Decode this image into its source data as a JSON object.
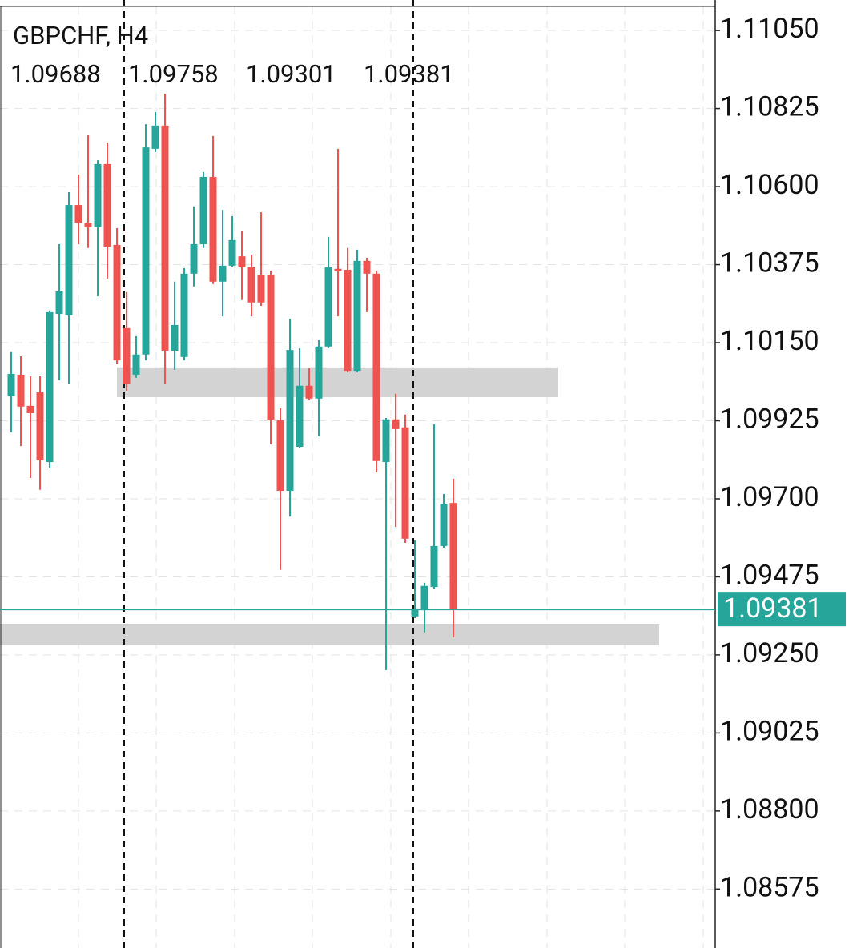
{
  "chart_data": {
    "type": "candlestick",
    "title": "GBPCHF, H4",
    "open": [
      1.09996,
      1.10058,
      1.09968,
      1.10007,
      1.09806,
      1.10233,
      1.10229,
      1.10547,
      1.10496,
      1.10483,
      1.10665,
      1.10432,
      1.10192,
      1.10058,
      1.10116,
      1.10709,
      1.10776,
      1.10127,
      1.10109,
      1.10349,
      1.10434,
      1.10628,
      1.10326,
      1.10372,
      1.10399,
      1.10367,
      1.10346,
      1.10346,
      1.09926,
      1.09723,
      1.0985,
      1.10026,
      1.09989,
      1.10139,
      1.10363,
      1.1036,
      1.10069,
      1.10386,
      1.10349,
      1.09806,
      1.09929,
      1.09906,
      1.09361,
      1.09379,
      1.09446,
      1.09564,
      1.09688
    ],
    "high": [
      1.10123,
      1.10111,
      1.10053,
      1.10053,
      1.10243,
      1.10434,
      1.10584,
      1.10635,
      1.1075,
      1.10676,
      1.10727,
      1.1048,
      1.10296,
      1.10169,
      1.1078,
      1.10815,
      1.10868,
      1.10326,
      1.10365,
      1.10543,
      1.10642,
      1.10746,
      1.10533,
      1.10515,
      1.10473,
      1.10404,
      1.10526,
      1.10358,
      1.09961,
      1.10219,
      1.10134,
      1.10076,
      1.10157,
      1.10455,
      1.10709,
      1.10423,
      1.10418,
      1.10395,
      1.10358,
      1.09933,
      1.10003,
      1.09943,
      1.0958,
      1.09458,
      1.09915,
      1.09714,
      1.09758
    ],
    "low": [
      1.09892,
      1.09852,
      1.0976,
      1.09726,
      1.09788,
      1.10042,
      1.1003,
      1.10434,
      1.10423,
      1.10284,
      1.10335,
      1.10088,
      1.10012,
      1.10049,
      1.10099,
      1.107,
      1.1003,
      1.10072,
      1.10099,
      1.10312,
      1.10423,
      1.10319,
      1.10226,
      1.10367,
      1.10273,
      1.10226,
      1.10256,
      1.09857,
      1.09495,
      1.09649,
      1.09846,
      1.09984,
      1.0988,
      1.10134,
      1.10226,
      1.10065,
      1.10065,
      1.10238,
      1.09776,
      1.09206,
      1.09619,
      1.09573,
      1.09356,
      1.09315,
      1.09439,
      1.09557,
      1.09301
    ],
    "close": [
      1.1006,
      1.09966,
      1.09947,
      1.09811,
      1.10238,
      1.10298,
      1.10547,
      1.10496,
      1.10483,
      1.10665,
      1.10427,
      1.10099,
      1.1003,
      1.10116,
      1.10713,
      1.10776,
      1.10127,
      1.10201,
      1.10349,
      1.10434,
      1.10628,
      1.10326,
      1.10372,
      1.10446,
      1.10367,
      1.10266,
      1.10266,
      1.09926,
      1.09723,
      1.10129,
      1.10026,
      1.09989,
      1.10139,
      1.10367,
      1.10356,
      1.10069,
      1.10386,
      1.10349,
      1.09809,
      1.09929,
      1.09901,
      1.09585,
      1.09384,
      1.09449,
      1.09564,
      1.09686,
      1.09381
    ],
    "up_color": "#26a69a",
    "down_color": "#ef5350",
    "zones": [
      {
        "from": 1.09993,
        "to": 1.10079
      },
      {
        "from": 1.09278,
        "to": 1.0934
      }
    ],
    "ylim": [
      1.08405,
      1.11138
    ],
    "yticks": [
      {
        "value": 1.1105,
        "label": "1.11050"
      },
      {
        "value": 1.10825,
        "label": "1.10825"
      },
      {
        "value": 1.106,
        "label": "1.10600"
      },
      {
        "value": 1.10375,
        "label": "1.10375"
      },
      {
        "value": 1.1015,
        "label": "1.10150"
      },
      {
        "value": 1.09925,
        "label": "1.09925"
      },
      {
        "value": 1.097,
        "label": "1.09700"
      },
      {
        "value": 1.09475,
        "label": "1.09475"
      },
      {
        "value": 1.0925,
        "label": "1.09250"
      },
      {
        "value": 1.09025,
        "label": "1.09025"
      },
      {
        "value": 1.088,
        "label": "1.08800"
      },
      {
        "value": 1.08575,
        "label": "1.08575"
      }
    ],
    "grid": true
  }
}
